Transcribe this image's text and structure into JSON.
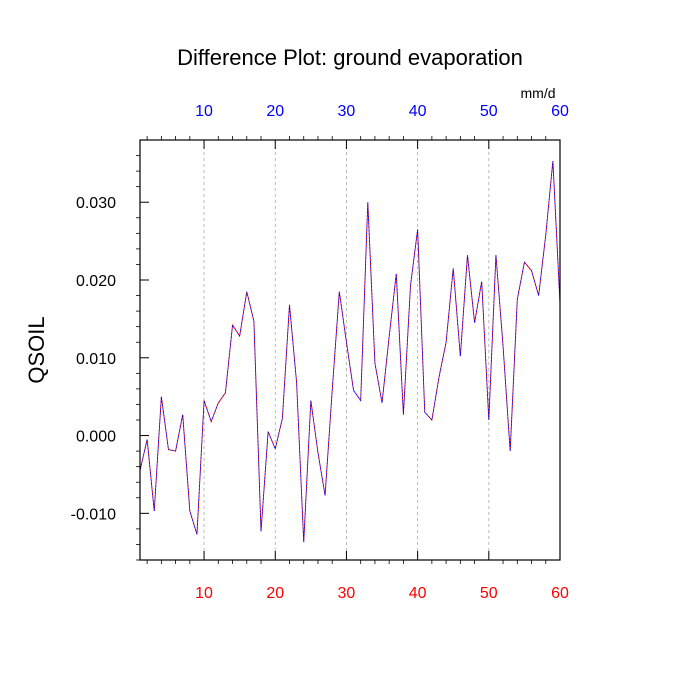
{
  "chart_data": {
    "type": "line",
    "title": "Difference Plot: ground evaporation",
    "ylabel": "QSOIL",
    "top_axis_units": "mm/d",
    "xlim": [
      1,
      60
    ],
    "ylim": [
      -0.016,
      0.038
    ],
    "x_ticks": [
      "10",
      "20",
      "30",
      "40",
      "50",
      "60"
    ],
    "y_ticks": [
      "-0.010",
      "0.000",
      "0.010",
      "0.020",
      "0.030"
    ],
    "grid": "vertical-dashed",
    "colors": {
      "bottom_tick_labels": "#ff0000",
      "top_tick_labels": "#0000ff",
      "series_a": "#ff0000",
      "series_b": "#0000ff",
      "gridline": "#aaaaaa"
    },
    "x": [
      1,
      2,
      3,
      4,
      5,
      6,
      7,
      8,
      9,
      10,
      11,
      12,
      13,
      14,
      15,
      16,
      17,
      18,
      19,
      20,
      21,
      22,
      23,
      24,
      25,
      26,
      27,
      28,
      29,
      30,
      31,
      32,
      33,
      34,
      35,
      36,
      37,
      38,
      39,
      40,
      41,
      42,
      43,
      44,
      45,
      46,
      47,
      48,
      49,
      50,
      51,
      52,
      53,
      54,
      55,
      56,
      57,
      58,
      59,
      60
    ],
    "series": [
      {
        "values": [
          -0.0045,
          -0.0005,
          -0.0097,
          0.005,
          -0.0018,
          -0.002,
          0.0027,
          -0.0097,
          -0.0127,
          0.0045,
          0.0018,
          0.0042,
          0.0055,
          0.0142,
          0.0128,
          0.0185,
          0.0147,
          -0.0123,
          0.0005,
          -0.0017,
          0.0022,
          0.0168,
          0.0068,
          -0.0137,
          0.0045,
          -0.0022,
          -0.0077,
          0.0058,
          0.0185,
          0.012,
          0.0058,
          0.0045,
          0.03,
          0.0093,
          0.0042,
          0.0127,
          0.0208,
          0.0027,
          0.0193,
          0.0265,
          0.003,
          0.002,
          0.0075,
          0.012,
          0.0215,
          0.0102,
          0.0232,
          0.0145,
          0.0198,
          0.002,
          0.0232,
          0.0115,
          -0.002,
          0.0175,
          0.0223,
          0.0212,
          0.018,
          0.0258,
          0.0353,
          0.017
        ]
      }
    ]
  }
}
